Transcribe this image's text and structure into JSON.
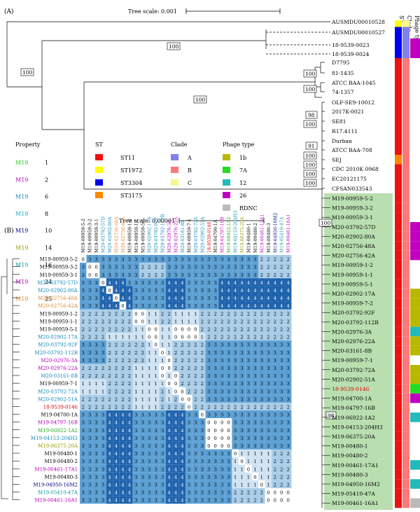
{
  "panel_a": {
    "label": "(A)",
    "tree_scale": "Tree scale: 0.001",
    "col_headers": [
      "ST",
      "Clade",
      "Phage type"
    ],
    "bootstraps": [
      "100",
      "100",
      "100",
      "100",
      "100",
      "98",
      "100",
      "91",
      "100",
      "100",
      "100",
      "100",
      "100",
      "100"
    ],
    "bootstrap_98_lower": "98",
    "leaves": [
      {
        "name": "AUSMDU00010528",
        "st": "#ffff00",
        "clade": "#f7f78c",
        "phage": ""
      },
      {
        "name": "AUSMDU00010527",
        "st": "#0000ee",
        "clade": "#8080ee",
        "phage": ""
      },
      {
        "name": "18-9539-0023",
        "st": "#0000ee",
        "clade": "#8080ee",
        "phage": "#c000c0"
      },
      {
        "name": "18-9539-0024",
        "st": "#0000ee",
        "clade": "#8080ee",
        "phage": "#c000c0"
      },
      {
        "name": "D7795",
        "st": "#ee1111",
        "clade": "#ff7777",
        "phage": ""
      },
      {
        "name": "81-1435",
        "st": "#ee1111",
        "clade": "#ff7777",
        "phage": ""
      },
      {
        "name": "ATCC BAA-1045",
        "st": "#ee1111",
        "clade": "#ff7777",
        "phage": ""
      },
      {
        "name": "74-1357",
        "st": "#ee1111",
        "clade": "#ff7777",
        "phage": ""
      },
      {
        "name": "OLF-SE9-10012",
        "st": "#ee1111",
        "clade": "#ff7777",
        "phage": ""
      },
      {
        "name": "2017K-0021",
        "st": "#ee1111",
        "clade": "#ff7777",
        "phage": ""
      },
      {
        "name": "SE81",
        "st": "#ee1111",
        "clade": "#ff7777",
        "phage": ""
      },
      {
        "name": "R17.4111",
        "st": "#ee1111",
        "clade": "#ff7777",
        "phage": ""
      },
      {
        "name": "Durban",
        "st": "#ee1111",
        "clade": "#ff7777",
        "phage": ""
      },
      {
        "name": "ATCC BAA-708",
        "st": "#ee1111",
        "clade": "#ff7777",
        "phage": ""
      },
      {
        "name": "SEJ",
        "st": "#ff8800",
        "clade": "#ff7777",
        "phage": ""
      },
      {
        "name": "CDC 2010K 0968",
        "st": "#ee1111",
        "clade": "#ff7777",
        "phage": ""
      },
      {
        "name": "EC20121175",
        "st": "#ee1111",
        "clade": "#ff7777",
        "phage": ""
      },
      {
        "name": "CFSAN033543",
        "st": "#ee1111",
        "clade": "#ff7777",
        "phage": ""
      },
      {
        "name": "M19-00959-5-2",
        "st": "#ee1111",
        "clade": "#ff7777",
        "phage": ""
      },
      {
        "name": "M19-00959-3-2",
        "st": "#ee1111",
        "clade": "#ff7777",
        "phage": ""
      },
      {
        "name": "M19-00959-3-1",
        "st": "#ee1111",
        "clade": "#ff7777",
        "phage": ""
      },
      {
        "name": "M20-03792-57D",
        "st": "#ee1111",
        "clade": "#ff7777",
        "phage": "#c000c0"
      },
      {
        "name": "M20-02902-80A",
        "st": "#ee1111",
        "clade": "#ff7777",
        "phage": "#c000c0"
      },
      {
        "name": "M20-02756-48A",
        "st": "#ee1111",
        "clade": "#ff7777",
        "phage": "#c000c0"
      },
      {
        "name": "M20-02756-42A",
        "st": "#ee1111",
        "clade": "#ff7777",
        "phage": "#c000c0"
      },
      {
        "name": "M19-00959-1-2",
        "st": "#ee1111",
        "clade": "#ff7777",
        "phage": ""
      },
      {
        "name": "M19-00959-1-1",
        "st": "#ee1111",
        "clade": "#ff7777",
        "phage": ""
      },
      {
        "name": "M19-00959-5-1",
        "st": "#ee1111",
        "clade": "#ff7777",
        "phage": ""
      },
      {
        "name": "M20-02902-17A",
        "st": "#ee1111",
        "clade": "#ff7777",
        "phage": "#b8b800"
      },
      {
        "name": "M19-00959-7-2",
        "st": "#ee1111",
        "clade": "#ff7777",
        "phage": "#b8b800"
      },
      {
        "name": "M20-03792-92F",
        "st": "#ee1111",
        "clade": "#ff7777",
        "phage": "#b8b800"
      },
      {
        "name": "M20-03792-112B",
        "st": "#ee1111",
        "clade": "#ff7777",
        "phage": "#b8b800"
      },
      {
        "name": "M20-02976-3A",
        "st": "#ee1111",
        "clade": "#ff7777",
        "phage": "#22bbbb"
      },
      {
        "name": "M20-02976-22A",
        "st": "#ee1111",
        "clade": "#ff7777",
        "phage": "#b8b800"
      },
      {
        "name": "M20-03161-8B",
        "st": "#ee1111",
        "clade": "#ff7777",
        "phage": "#b8b800"
      },
      {
        "name": "M19-00959-7-1",
        "st": "#ee1111",
        "clade": "#ff7777",
        "phage": ""
      },
      {
        "name": "M20-03792-72A",
        "st": "#ee1111",
        "clade": "#ff7777",
        "phage": "#b8b800"
      },
      {
        "name": "M20-02902-51A",
        "st": "#ee1111",
        "clade": "#ff7777",
        "phage": "#b8b800"
      },
      {
        "name": "18-9539-0146",
        "st": "#ee1111",
        "clade": "#ff7777",
        "phage": "#22dd22"
      },
      {
        "name": "M19-04700-1A",
        "st": "#ee1111",
        "clade": "#ff7777",
        "phage": "#c000c0"
      },
      {
        "name": "M19-04797-16B",
        "st": "#ee1111",
        "clade": "#ff7777",
        "phage": ""
      },
      {
        "name": "M19-06922-1A2",
        "st": "#ee1111",
        "clade": "#ff7777",
        "phage": "#22bbbb"
      },
      {
        "name": "M19-04153-204H3",
        "st": "#ee1111",
        "clade": "#ff7777",
        "phage": ""
      },
      {
        "name": "M19-06375-20A",
        "st": "#ee1111",
        "clade": "#ff7777",
        "phage": ""
      },
      {
        "name": "M19-00480-1",
        "st": "#ee1111",
        "clade": "#ff7777",
        "phage": ""
      },
      {
        "name": "M19-00480-2",
        "st": "#ee1111",
        "clade": "#ff7777",
        "phage": ""
      },
      {
        "name": "M19-00461-17A1",
        "st": "#ee1111",
        "clade": "#ff7777",
        "phage": "#22bbbb"
      },
      {
        "name": "M19-00480-3",
        "st": "#ee1111",
        "clade": "#ff7777",
        "phage": ""
      },
      {
        "name": "M19-04950-16M2",
        "st": "#ee1111",
        "clade": "#ff7777",
        "phage": "#22bbbb"
      },
      {
        "name": "M19-05410-47A",
        "st": "#ee1111",
        "clade": "#ff7777",
        "phage": ""
      },
      {
        "name": "M19-00461-16A1",
        "st": "#ee1111",
        "clade": "#ff7777",
        "phage": "#bbbbbb"
      }
    ]
  },
  "legend": {
    "property_title": "Property",
    "st_title": "ST",
    "clade_title": "Clade",
    "phage_title": "Phage type",
    "property": [
      {
        "name": "M19",
        "value": "1",
        "color": "#22cc22"
      },
      {
        "name": "M19",
        "value": "2",
        "color": "#bb00bb"
      },
      {
        "name": "M19",
        "value": "6",
        "color": "#1188bb"
      },
      {
        "name": "M19",
        "value": "8",
        "color": "#22aacc"
      },
      {
        "name": "M19",
        "value": "10",
        "color": "#000088"
      },
      {
        "name": "M19",
        "value": "14",
        "color": "#999900"
      },
      {
        "name": "M19",
        "value": "16",
        "color": "#119999"
      },
      {
        "name": "M19",
        "value": "24",
        "color": "#bb00bb"
      },
      {
        "name": "M19",
        "value": "25",
        "color": "#dd8833"
      }
    ],
    "st": [
      {
        "label": "ST11",
        "color": "#ee1111"
      },
      {
        "label": "ST1972",
        "color": "#ffff00"
      },
      {
        "label": "ST3304",
        "color": "#0000ee"
      },
      {
        "label": "ST3175",
        "color": "#ff8800"
      }
    ],
    "clade": [
      {
        "label": "A",
        "color": "#8080ee"
      },
      {
        "label": "B",
        "color": "#ff7777"
      },
      {
        "label": "C",
        "color": "#f7f78c"
      }
    ],
    "phage": [
      {
        "label": "1b",
        "color": "#b8b800"
      },
      {
        "label": "7A",
        "color": "#22dd22"
      },
      {
        "label": "12",
        "color": "#22bbbb"
      },
      {
        "label": "26",
        "color": "#c000c0"
      },
      {
        "label": "RDNC",
        "color": "#bbbbbb"
      }
    ]
  },
  "panel_b": {
    "label": "(B)",
    "tree_scale": "Tree scale: 0.00001",
    "samples": [
      {
        "name": "M19-00959-5-2",
        "color": "#000000"
      },
      {
        "name": "M19-00959-3-2",
        "color": "#000000"
      },
      {
        "name": "M19-00959-3-1",
        "color": "#000000"
      },
      {
        "name": "M20-03792-57D",
        "color": "#1188bb"
      },
      {
        "name": "M20-02902-80A",
        "color": "#1188bb"
      },
      {
        "name": "M20-02756-48A",
        "color": "#dd8833"
      },
      {
        "name": "M20-02756-42A",
        "color": "#dd8833"
      },
      {
        "name": "M19-00959-1-2",
        "color": "#000000"
      },
      {
        "name": "M19-00959-1-1",
        "color": "#000000"
      },
      {
        "name": "M19-00959-5-1",
        "color": "#000000"
      },
      {
        "name": "M20-02902-17A",
        "color": "#1188bb"
      },
      {
        "name": "M20-03792-92F",
        "color": "#1188bb"
      },
      {
        "name": "M20-03792-112B",
        "color": "#1188bb"
      },
      {
        "name": "M20-02976-3A",
        "color": "#bb00bb"
      },
      {
        "name": "M20-02976-22A",
        "color": "#bb00bb"
      },
      {
        "name": "M20-03161-8B",
        "color": "#1188bb"
      },
      {
        "name": "M19-00959-7-1",
        "color": "#000000"
      },
      {
        "name": "M20-03792-72A",
        "color": "#1188bb"
      },
      {
        "name": "M20-02902-51A",
        "color": "#1188bb"
      },
      {
        "name": "18-9539-0146",
        "color": "#dd0000"
      },
      {
        "name": "M19-04700-1A",
        "color": "#000000"
      },
      {
        "name": "M19-04797-16B",
        "color": "#bb00bb"
      },
      {
        "name": "M19-06922-1A2",
        "color": "#22aa22"
      },
      {
        "name": "M19-04153-204H3",
        "color": "#1188bb"
      },
      {
        "name": "M19-06375-20A",
        "color": "#999900"
      },
      {
        "name": "M19-00480-1",
        "color": "#000000"
      },
      {
        "name": "M19-00480-2",
        "color": "#000000"
      },
      {
        "name": "M19-00461-17A1",
        "color": "#bb00bb"
      },
      {
        "name": "M19-00480-3",
        "color": "#000000"
      },
      {
        "name": "M19-04950-16M2",
        "color": "#000088"
      },
      {
        "name": "M19-05410-47A",
        "color": "#119999"
      },
      {
        "name": "M19-00461-16A1",
        "color": "#bb00bb"
      }
    ],
    "matrix": [
      "03333333333333333333333333322222",
      "30033333322223333333333333322222",
      "30033333322223333333333333322222",
      "33304443333334443333344444444444",
      "33340444333334443333344444444444",
      "33344044333334443333344444444444",
      "33344404333334443333344444444444",
      "22222222001122111122222222222222",
      "22222222001122111122222222222222",
      "22222222110011000022222222222222",
      "22221111110011000012222222222222",
      "33332222221011222223333333333333",
      "33332222221101222223333333333333",
      "33332222221110222223333333333333",
      "22222222111100222223333333333333",
      "22222222111101022223333333333333",
      "11112222111110022223333333333333",
      "11112222111121002223333333333333",
      "22222222111121200223333333333333",
      "22222222111122220222222222222222",
      "33334444333334443303333333333333",
      "33334444333334443330000333333333",
      "33334444333334443330000333333333",
      "33334444333334443330000333333333",
      "33334444333334443330000333333333",
      "33334444333334443333333011111222",
      "33334444333334443333333101111222",
      "33334444333334443333333110111222",
      "33334444333334443333333111011222",
      "33334444333334443333333111101222",
      "33334444333334443333333222220000",
      "33334444333334443333333222220000"
    ]
  }
}
